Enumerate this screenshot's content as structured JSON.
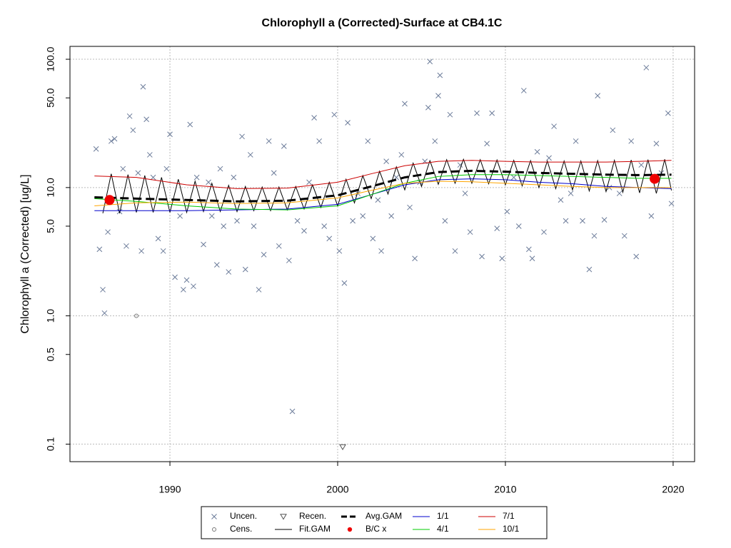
{
  "chart_data": {
    "type": "line",
    "title": "Chlorophyll a (Corrected)-Surface at CB4.1C",
    "y_label": "Chlorophyll a (Corrected) [ug/L]",
    "log_y": true,
    "grid": true,
    "xlim": [
      1984.04,
      2021.28
    ],
    "xticks": [
      1990,
      2000,
      2010,
      2020
    ],
    "ylim": [
      0.073,
      126
    ],
    "yticks": [
      {
        "value": 0.1,
        "label": "0.1"
      },
      {
        "value": 0.5,
        "label": "0.5"
      },
      {
        "value": 1,
        "label": "1.0"
      },
      {
        "value": 5,
        "label": "5.0"
      },
      {
        "value": 10,
        "label": "10.0"
      },
      {
        "value": 50,
        "label": "50.0"
      },
      {
        "value": 100,
        "label": "100.0"
      }
    ],
    "series": [
      {
        "name": "Uncen.",
        "color": "#6b7b99",
        "style": "x",
        "x": [
          1985.6,
          1985.8,
          1986.0,
          1986.1,
          1986.3,
          1986.5,
          1986.7,
          1987.0,
          1987.2,
          1987.4,
          1987.6,
          1987.8,
          1988.1,
          1988.3,
          1988.4,
          1988.6,
          1988.8,
          1989.0,
          1989.3,
          1989.6,
          1989.8,
          1990.0,
          1990.3,
          1990.6,
          1990.8,
          1991.0,
          1991.2,
          1991.4,
          1991.6,
          1992.0,
          1992.3,
          1992.5,
          1992.8,
          1993.0,
          1993.2,
          1993.5,
          1993.8,
          1994.0,
          1994.3,
          1994.5,
          1994.8,
          1995.0,
          1995.3,
          1995.6,
          1995.9,
          1996.2,
          1996.5,
          1996.8,
          1997.1,
          1997.3,
          1997.6,
          1998.0,
          1998.3,
          1998.6,
          1998.9,
          1999.2,
          1999.5,
          1999.8,
          2000.1,
          2000.4,
          2000.6,
          2000.9,
          2001.2,
          2001.5,
          2001.8,
          2002.1,
          2002.4,
          2002.6,
          2002.9,
          2003.2,
          2003.5,
          2003.8,
          2004.0,
          2004.3,
          2004.6,
          2004.9,
          2005.2,
          2005.4,
          2005.5,
          2005.8,
          2006.0,
          2006.1,
          2006.4,
          2006.7,
          2007.0,
          2007.3,
          2007.6,
          2007.9,
          2008.3,
          2008.6,
          2008.9,
          2009.2,
          2009.5,
          2009.8,
          2010.1,
          2010.5,
          2010.8,
          2011.1,
          2011.4,
          2011.6,
          2011.9,
          2012.3,
          2012.6,
          2012.9,
          2013.3,
          2013.6,
          2013.9,
          2014.2,
          2014.6,
          2015.0,
          2015.3,
          2015.5,
          2015.9,
          2016.2,
          2016.4,
          2016.8,
          2017.1,
          2017.5,
          2017.8,
          2018.1,
          2018.4,
          2018.7,
          2019.0,
          2019.3,
          2019.7,
          2019.9
        ],
        "values": [
          20,
          3.3,
          1.6,
          1.05,
          4.5,
          23,
          24,
          6.5,
          14,
          3.5,
          36,
          28,
          13,
          3.2,
          61,
          34,
          18,
          12,
          4.0,
          3.2,
          14,
          26,
          2.0,
          6,
          1.6,
          1.9,
          31,
          1.7,
          12,
          3.6,
          11,
          6,
          2.5,
          14,
          5,
          2.2,
          12,
          5.5,
          25,
          2.3,
          18,
          5,
          1.6,
          3.0,
          23,
          13,
          3.5,
          21,
          2.7,
          0.18,
          5.5,
          4.6,
          11,
          35,
          23,
          5,
          4,
          37,
          3.2,
          1.8,
          32,
          5.5,
          9,
          6,
          23,
          4.0,
          8,
          3.2,
          16,
          6,
          12,
          18,
          45,
          7,
          2.8,
          11,
          16,
          42,
          96,
          23,
          52,
          75,
          5.5,
          37,
          3.2,
          15,
          9,
          4.5,
          38,
          2.9,
          22,
          38,
          4.8,
          2.8,
          6.5,
          12,
          5,
          57,
          3.3,
          2.8,
          19,
          4.5,
          17,
          30,
          8,
          5.5,
          9,
          23,
          5.5,
          2.3,
          4.2,
          52,
          5.6,
          10,
          28,
          9,
          4.2,
          23,
          2.9,
          15,
          86,
          6,
          22,
          13,
          38,
          7.5
        ]
      },
      {
        "name": "Cens.",
        "color": "#777777",
        "style": "circle",
        "x": [
          1988.0
        ],
        "values": [
          1.0
        ]
      },
      {
        "name": "Recen.",
        "color": "#555555",
        "style": "triangle",
        "x": [
          2000.3
        ],
        "values": [
          0.095
        ]
      },
      {
        "name": "Fit.GAM",
        "color": "#000000",
        "style": "line",
        "x": [
          1986,
          1986.5,
          1987,
          1987.5,
          1988,
          1988.5,
          1989,
          1989.5,
          1990,
          1990.5,
          1991,
          1991.5,
          1992,
          1992.5,
          1993,
          1993.5,
          1994,
          1994.5,
          1995,
          1995.5,
          1996,
          1996.5,
          1997,
          1997.5,
          1998,
          1998.5,
          1999,
          1999.5,
          2000,
          2000.5,
          2001,
          2001.5,
          2002,
          2002.5,
          2003,
          2003.5,
          2004,
          2004.5,
          2005,
          2005.5,
          2006,
          2006.5,
          2007,
          2007.5,
          2008,
          2008.5,
          2009,
          2009.5,
          2010,
          2010.5,
          2011,
          2011.5,
          2012,
          2012.5,
          2013,
          2013.5,
          2014,
          2014.5,
          2015,
          2015.5,
          2016,
          2016.5,
          2017,
          2017.5,
          2018,
          2018.5,
          2019,
          2019.5,
          2019.9
        ],
        "values": [
          6.3,
          12.8,
          6.3,
          12.6,
          6.4,
          12.4,
          6.4,
          12.0,
          6.4,
          11.6,
          6.4,
          11.2,
          6.5,
          10.8,
          6.5,
          10.4,
          6.5,
          10.2,
          6.6,
          10.1,
          6.6,
          10.1,
          6.7,
          10.2,
          6.8,
          10.5,
          7.0,
          11.0,
          7.2,
          11.6,
          7.6,
          12.4,
          8.2,
          13.4,
          8.9,
          14.5,
          9.6,
          15.5,
          10.2,
          16.2,
          10.6,
          16.5,
          10.8,
          16.6,
          10.8,
          16.5,
          10.7,
          16.4,
          10.5,
          16.3,
          10.3,
          16.2,
          10.0,
          16.1,
          9.8,
          16.1,
          9.6,
          16.1,
          9.4,
          16.2,
          9.3,
          16.3,
          9.2,
          16.4,
          9.1,
          16.5,
          9.0,
          16.6,
          9.5
        ]
      },
      {
        "name": "Avg.GAM",
        "color": "#000000",
        "style": "dashed",
        "x": [
          1985.5,
          1988,
          1991,
          1994,
          1997,
          2000,
          2002,
          2004,
          2006,
          2008,
          2010,
          2012,
          2014,
          2016,
          2018,
          2019.9
        ],
        "values": [
          8.4,
          8.2,
          8.0,
          7.8,
          7.9,
          8.7,
          10.2,
          12.0,
          13.2,
          13.5,
          13.3,
          13.0,
          12.8,
          12.6,
          12.5,
          12.6
        ]
      },
      {
        "name": "B/C x",
        "color": "#ee0000",
        "style": "dot",
        "x": [
          1986.4,
          2018.9
        ],
        "values": [
          8.0,
          11.7
        ]
      },
      {
        "name": "1/1",
        "color": "#0000cc",
        "style": "line",
        "x": [
          1985.5,
          1988,
          1991,
          1994,
          1997,
          2000,
          2002,
          2004,
          2006,
          2008,
          2010,
          2012,
          2014,
          2016,
          2018,
          2019.9
        ],
        "values": [
          6.6,
          6.6,
          6.6,
          6.7,
          6.8,
          7.4,
          8.8,
          10.5,
          11.5,
          11.7,
          11.5,
          11.0,
          10.7,
          10.2,
          10.0,
          9.8
        ]
      },
      {
        "name": "4/1",
        "color": "#00cc00",
        "style": "line",
        "x": [
          1985.5,
          1988,
          1991,
          1994,
          1997,
          2000,
          2002,
          2004,
          2006,
          2008,
          2010,
          2012,
          2014,
          2016,
          2018,
          2019.9
        ],
        "values": [
          8.2,
          7.8,
          7.2,
          6.8,
          6.7,
          7.2,
          8.8,
          10.8,
          12.2,
          12.6,
          12.6,
          12.4,
          12.2,
          12.0,
          11.8,
          11.8
        ]
      },
      {
        "name": "7/1",
        "color": "#cc0000",
        "style": "line",
        "x": [
          1985.5,
          1988,
          1991,
          1994,
          1997,
          2000,
          2002,
          2004,
          2006,
          2008,
          2010,
          2012,
          2014,
          2016,
          2018,
          2019.9
        ],
        "values": [
          12.3,
          12.0,
          10.5,
          9.8,
          9.9,
          11.0,
          12.8,
          14.8,
          16.0,
          16.3,
          16.0,
          15.8,
          15.8,
          15.8,
          16.0,
          16.3
        ]
      },
      {
        "name": "10/1",
        "color": "#ffa500",
        "style": "line",
        "x": [
          1985.5,
          1988,
          1991,
          1994,
          1997,
          2000,
          2002,
          2004,
          2006,
          2008,
          2010,
          2012,
          2014,
          2016,
          2018,
          2019.9
        ],
        "values": [
          7.2,
          7.6,
          7.7,
          7.5,
          7.6,
          8.3,
          9.5,
          10.8,
          11.2,
          11.1,
          10.8,
          10.5,
          10.2,
          10.0,
          10.0,
          10.0
        ]
      }
    ]
  }
}
